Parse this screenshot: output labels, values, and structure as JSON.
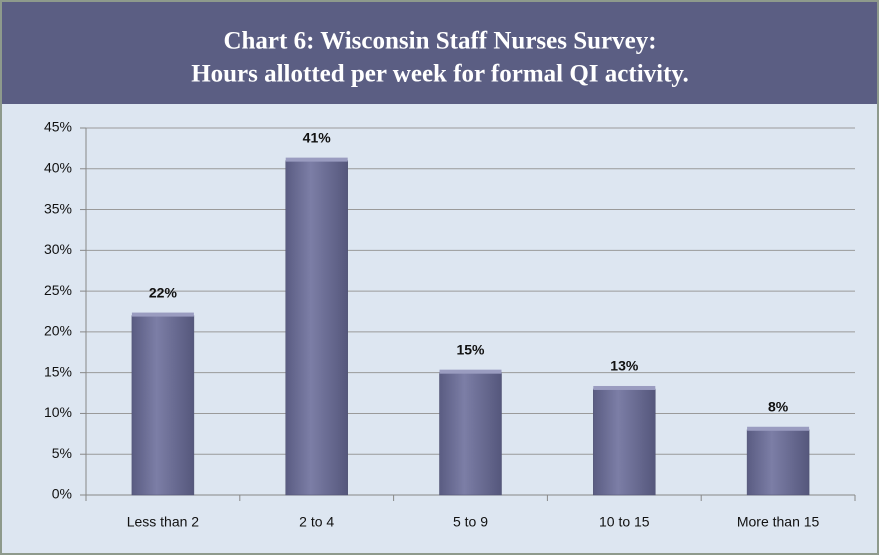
{
  "chart_data": {
    "type": "bar",
    "title": [
      "Chart 6:  Wisconsin Staff Nurses Survey:",
      "Hours allotted per week for formal QI activity."
    ],
    "categories": [
      "Less than 2",
      "2 to 4",
      "5 to 9",
      "10 to 15",
      "More than 15"
    ],
    "values": [
      22,
      41,
      15,
      13,
      8
    ],
    "value_labels": [
      "22%",
      "41%",
      "15%",
      "13%",
      "8%"
    ],
    "color": "#6e7096",
    "ylim": [
      0,
      45
    ],
    "yticks": [
      {
        "value": 0,
        "label": "0%"
      },
      {
        "value": 5,
        "label": "5%"
      },
      {
        "value": 10,
        "label": "10%"
      },
      {
        "value": 15,
        "label": "15%"
      },
      {
        "value": 20,
        "label": "20%"
      },
      {
        "value": 25,
        "label": "25%"
      },
      {
        "value": 30,
        "label": "30%"
      },
      {
        "value": 35,
        "label": "35%"
      },
      {
        "value": 40,
        "label": "40%"
      },
      {
        "value": 45,
        "label": "45%"
      }
    ],
    "grid": true
  }
}
